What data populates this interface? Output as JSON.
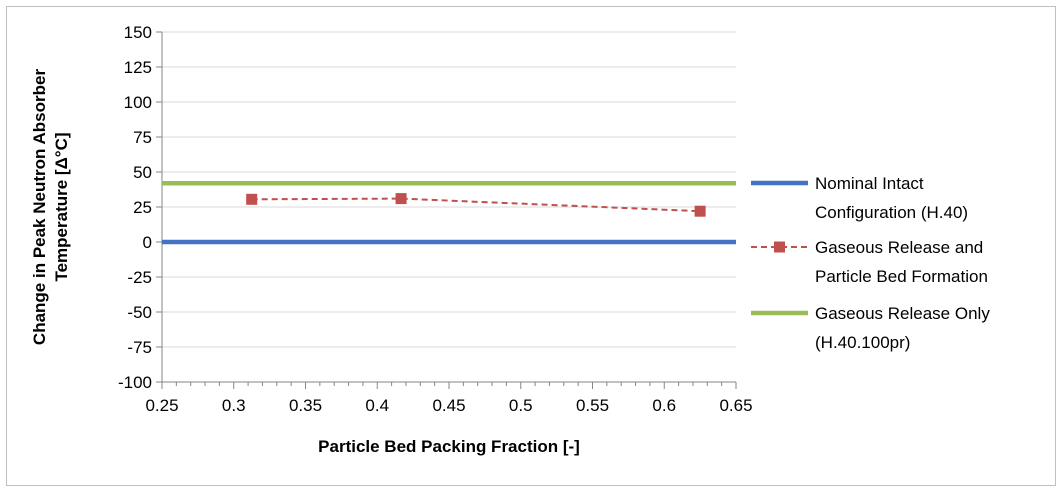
{
  "chart_data": {
    "type": "line",
    "xlabel": "Particle Bed Packing Fraction [-]",
    "ylabel": "Change in Peak Neutron Absorber Temperature [Δ°C]",
    "xlim": [
      0.25,
      0.65
    ],
    "ylim": [
      -100,
      150
    ],
    "x_ticks": [
      "0.25",
      "0.3",
      "0.35",
      "0.4",
      "0.45",
      "0.5",
      "0.55",
      "0.6",
      "0.65"
    ],
    "y_ticks": [
      "150",
      "125",
      "100",
      "75",
      "50",
      "25",
      "0",
      "-25",
      "-50",
      "-75",
      "-100"
    ],
    "grid": "horizontal",
    "legend_position": "right",
    "series": [
      {
        "name": "Nominal Intact Configuration (H.40)",
        "legend_lines": [
          "Nominal Intact",
          "Configuration (H.40)"
        ],
        "style": "solid",
        "color": "#4472c4",
        "marker": "none",
        "x": [
          0.25,
          0.65
        ],
        "values": [
          0,
          0
        ]
      },
      {
        "name": "Gaseous Release and Particle Bed Formation",
        "legend_lines": [
          "Gaseous Release and",
          "Particle Bed Formation"
        ],
        "style": "dashed",
        "color": "#c0504d",
        "marker": "square",
        "x": [
          0.3125,
          0.4166,
          0.625
        ],
        "values": [
          30.5,
          31,
          22
        ]
      },
      {
        "name": "Gaseous Release Only (H.40.100pr)",
        "legend_lines": [
          "Gaseous Release Only",
          "(H.40.100pr)"
        ],
        "style": "solid",
        "color": "#9bbb59",
        "marker": "none",
        "x": [
          0.25,
          0.65
        ],
        "values": [
          42,
          42
        ]
      }
    ]
  }
}
